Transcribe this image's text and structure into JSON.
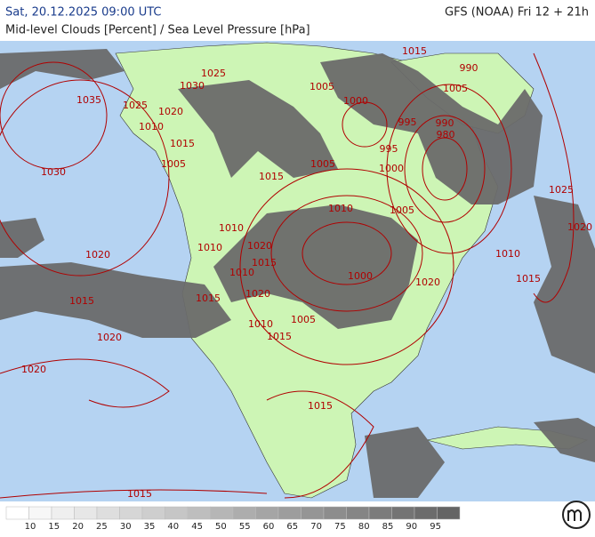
{
  "header": {
    "datetime": "Sat, 20.12.2025 09:00 UTC",
    "model": "GFS (NOAA) Fri 12 + 21h",
    "subtitle": "Mid-level Clouds [Percent] / Sea Level Pressure [hPa]"
  },
  "isobar_labels": [
    1035,
    1025,
    1030,
    1025,
    1020,
    1010,
    1015,
    1005,
    1030,
    1015,
    1005,
    1000,
    1005,
    1010,
    1010,
    1010,
    1020,
    1015,
    1020,
    1015,
    1015,
    1010,
    1020,
    1000,
    1020,
    1005,
    1010,
    1015,
    1020,
    1020,
    1015,
    1015,
    1005,
    1000,
    995,
    995,
    990,
    980,
    990,
    1015,
    1005,
    1025,
    1020,
    1010,
    1015
  ],
  "legend": {
    "values": [
      10,
      15,
      20,
      25,
      30,
      35,
      40,
      45,
      50,
      55,
      60,
      65,
      70,
      75,
      80,
      85,
      90,
      95
    ]
  }
}
